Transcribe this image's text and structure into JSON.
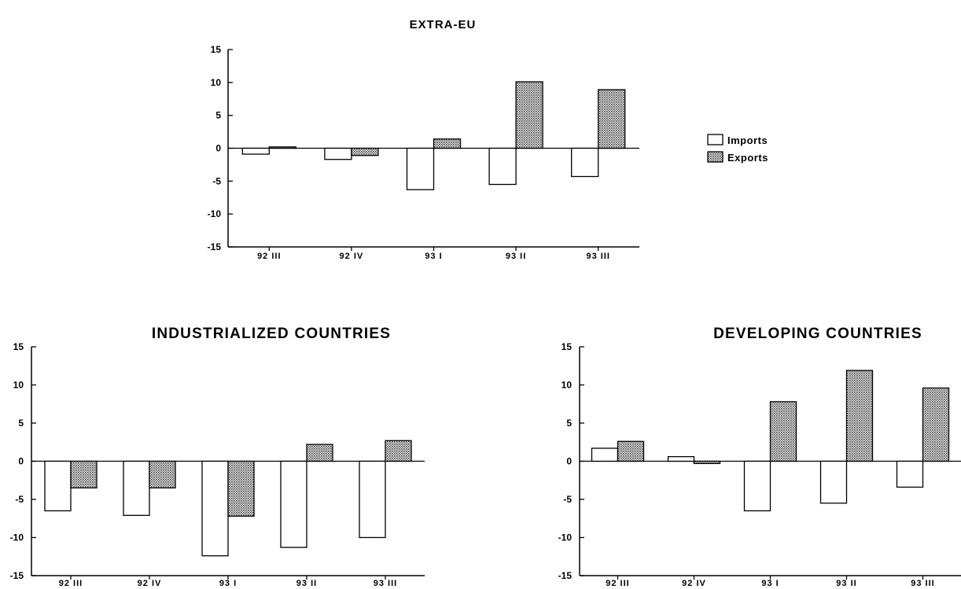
{
  "chart_data": [
    {
      "type": "bar",
      "title": "EXTRA-EU",
      "categories": [
        "92 III",
        "92 IV",
        "93 I",
        "93 II",
        "93 III"
      ],
      "series": [
        {
          "name": "Imports",
          "values": [
            -0.9,
            -1.7,
            -6.3,
            -5.5,
            -4.3
          ]
        },
        {
          "name": "Exports",
          "values": [
            0.2,
            -1.1,
            1.4,
            10.1,
            8.9
          ]
        }
      ],
      "xlabel": "",
      "ylabel": "",
      "ylim": [
        -15,
        15
      ],
      "yticks": [
        "15",
        "10",
        "5",
        "0",
        "-5",
        "-10",
        "-15"
      ],
      "grid": false,
      "legend": "right"
    },
    {
      "type": "bar",
      "title": "INDUSTRIALIZED COUNTRIES",
      "categories": [
        "92 III",
        "92 IV",
        "93 I",
        "93 II",
        "93 III"
      ],
      "series": [
        {
          "name": "Imports",
          "values": [
            -6.5,
            -7.1,
            -12.4,
            -11.3,
            -10.0
          ]
        },
        {
          "name": "Exports",
          "values": [
            -3.5,
            -3.5,
            -7.2,
            2.2,
            2.7
          ]
        }
      ],
      "xlabel": "",
      "ylabel": "",
      "ylim": [
        -15,
        15
      ],
      "yticks": [
        "15",
        "10",
        "5",
        "0",
        "-5",
        "-10",
        "-15"
      ],
      "grid": false
    },
    {
      "type": "bar",
      "title": "DEVELOPING COUNTRIES",
      "categories": [
        "92 III",
        "92 IV",
        "93 I",
        "93 II",
        "93 III"
      ],
      "series": [
        {
          "name": "Imports",
          "values": [
            1.7,
            0.6,
            -6.5,
            -5.5,
            -3.4
          ]
        },
        {
          "name": "Exports",
          "values": [
            2.6,
            -0.3,
            7.8,
            11.9,
            9.6
          ]
        }
      ],
      "xlabel": "",
      "ylabel": "",
      "ylim": [
        -15,
        15
      ],
      "yticks": [
        "15",
        "10",
        "5",
        "0",
        "-5",
        "-10",
        "-15"
      ],
      "grid": false
    }
  ],
  "legend": {
    "items": [
      {
        "label": "Imports",
        "fill": "#ffffff"
      },
      {
        "label": "Exports",
        "fill": "hatched-gray"
      }
    ]
  },
  "colors": {
    "imports_fill": "#ffffff",
    "exports_fill": "#9a9a9a",
    "stroke": "#000000"
  }
}
